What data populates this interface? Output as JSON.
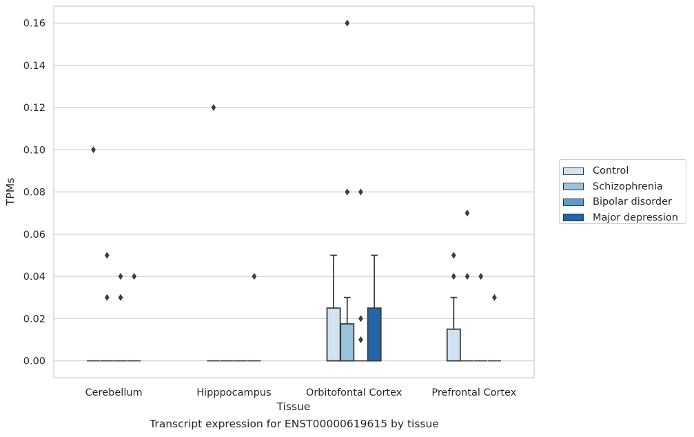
{
  "chart_data": {
    "type": "box",
    "xlabel": "Tissue",
    "ylabel": "TPMs",
    "ylim": [
      -0.008,
      0.168
    ],
    "yticks": [
      "0.00",
      "0.02",
      "0.04",
      "0.06",
      "0.08",
      "0.10",
      "0.12",
      "0.14",
      "0.16"
    ],
    "grid": true,
    "legend_position": "right",
    "categories": [
      "Cerebellum",
      "Hipppocampus",
      "Orbitofontal Cortex",
      "Prefrontal Cortex"
    ],
    "series": [
      {
        "name": "Control",
        "color": "#d1e2f2",
        "boxes": [
          {
            "q1": 0,
            "median": 0,
            "q3": 0,
            "whisker_low": 0,
            "whisker_high": 0,
            "outliers": [
              0.1
            ]
          },
          {
            "q1": 0,
            "median": 0,
            "q3": 0,
            "whisker_low": 0,
            "whisker_high": 0,
            "outliers": [
              0.12
            ]
          },
          {
            "q1": 0,
            "median": 0,
            "q3": 0.025,
            "whisker_low": 0,
            "whisker_high": 0.05,
            "outliers": []
          },
          {
            "q1": 0,
            "median": 0,
            "q3": 0.015,
            "whisker_low": 0,
            "whisker_high": 0.03,
            "outliers": [
              0.04,
              0.05
            ]
          }
        ]
      },
      {
        "name": "Schizophrenia",
        "color": "#9ac4de",
        "boxes": [
          {
            "q1": 0,
            "median": 0,
            "q3": 0,
            "whisker_low": 0,
            "whisker_high": 0,
            "outliers": [
              0.03,
              0.05
            ]
          },
          {
            "q1": 0,
            "median": 0,
            "q3": 0,
            "whisker_low": 0,
            "whisker_high": 0,
            "outliers": []
          },
          {
            "q1": 0,
            "median": 0,
            "q3": 0.0175,
            "whisker_low": 0,
            "whisker_high": 0.03,
            "outliers": [
              0.08,
              0.16
            ]
          },
          {
            "q1": 0,
            "median": 0,
            "q3": 0,
            "whisker_low": 0,
            "whisker_high": 0,
            "outliers": [
              0.04,
              0.07
            ]
          }
        ]
      },
      {
        "name": "Bipolar disorder",
        "color": "#5a9ecc",
        "boxes": [
          {
            "q1": 0,
            "median": 0,
            "q3": 0,
            "whisker_low": 0,
            "whisker_high": 0,
            "outliers": [
              0.03,
              0.04
            ]
          },
          {
            "q1": 0,
            "median": 0,
            "q3": 0,
            "whisker_low": 0,
            "whisker_high": 0,
            "outliers": []
          },
          {
            "q1": 0,
            "median": 0,
            "q3": 0,
            "whisker_low": 0,
            "whisker_high": 0,
            "outliers": [
              0.01,
              0.02,
              0.08
            ]
          },
          {
            "q1": 0,
            "median": 0,
            "q3": 0,
            "whisker_low": 0,
            "whisker_high": 0,
            "outliers": [
              0.04
            ]
          }
        ]
      },
      {
        "name": "Major depression",
        "color": "#2265a8",
        "boxes": [
          {
            "q1": 0,
            "median": 0,
            "q3": 0,
            "whisker_low": 0,
            "whisker_high": 0,
            "outliers": [
              0.04
            ]
          },
          {
            "q1": 0,
            "median": 0,
            "q3": 0,
            "whisker_low": 0,
            "whisker_high": 0,
            "outliers": [
              0.04
            ]
          },
          {
            "q1": 0,
            "median": 0,
            "q3": 0.025,
            "whisker_low": 0,
            "whisker_high": 0.05,
            "outliers": []
          },
          {
            "q1": 0,
            "median": 0,
            "q3": 0,
            "whisker_low": 0,
            "whisker_high": 0,
            "outliers": [
              0.03
            ]
          }
        ]
      }
    ],
    "caption": "Transcript expression for ENST00000619615 by tissue"
  }
}
